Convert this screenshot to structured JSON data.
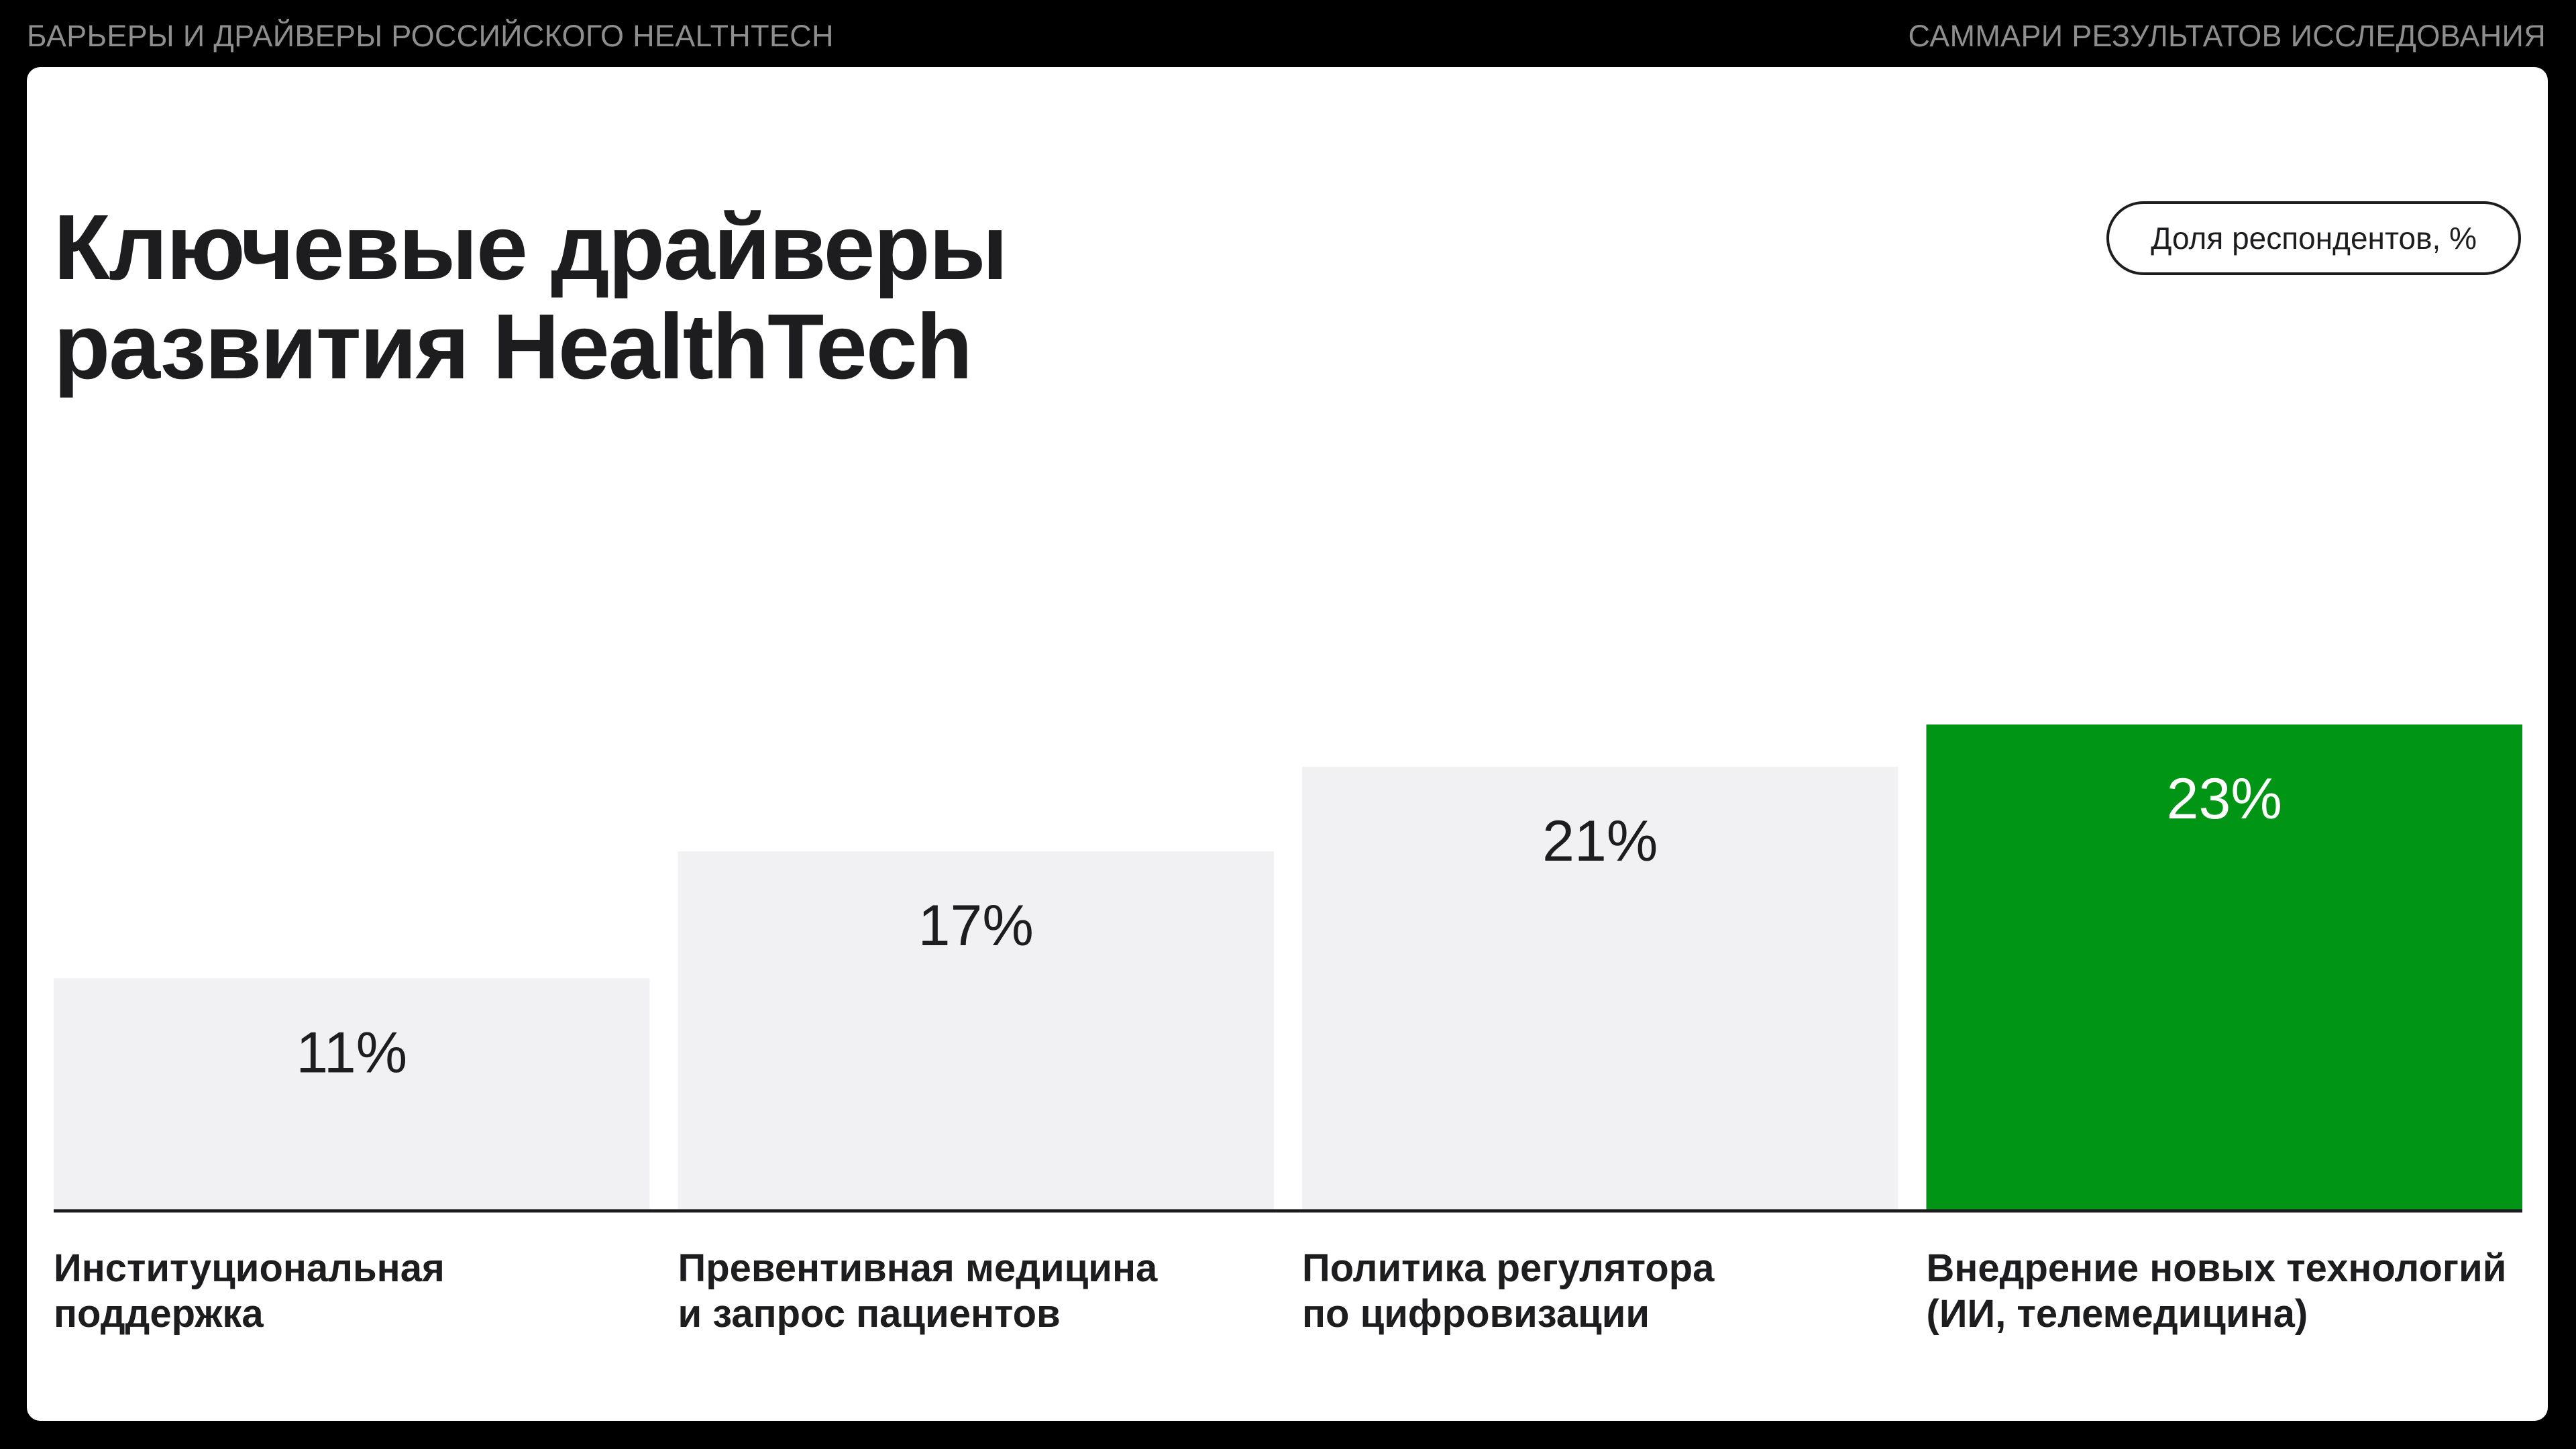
{
  "header": {
    "left_text": "БАРЬЕРЫ И ДРАЙВЕРЫ РОССИЙСКОГО HEALTHTECH",
    "right_text": "САММАРИ РЕЗУЛЬТАТОВ ИССЛЕДОВАНИЯ"
  },
  "slide": {
    "title_line1": "Ключевые драйверы",
    "title_line2": "развития HealthTech",
    "unit_label": "Доля респондентов, %"
  },
  "colors": {
    "bar_default": "#f1f0f2",
    "bar_highlight": "#009514",
    "text_dark": "#1d1d1f",
    "text_on_highlight": "#ffffff",
    "axis": "#1d1d1f"
  },
  "chart_data": {
    "type": "bar",
    "categories": [
      [
        "Институциональная",
        "поддержка"
      ],
      [
        "Превентивная медицина",
        "и запрос пациентов"
      ],
      [
        "Политика регулятора",
        "по цифровизации"
      ],
      [
        "Внедрение новых технологий",
        "(ИИ, телемедицина)"
      ]
    ],
    "values": [
      11,
      17,
      21,
      23
    ],
    "value_labels": [
      "11%",
      "17%",
      "21%",
      "23%"
    ],
    "highlight_index": 3,
    "ylim": [
      0,
      23
    ],
    "grid": false,
    "legend": "none"
  }
}
